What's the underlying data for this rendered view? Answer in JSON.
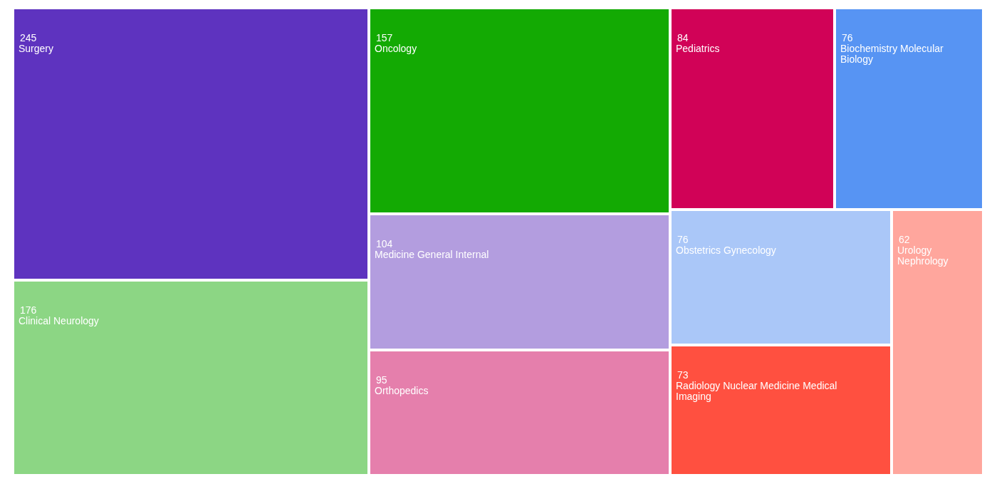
{
  "chart_data": {
    "type": "other",
    "categories": [
      "Surgery",
      "Clinical Neurology",
      "Oncology",
      "Medicine General Internal",
      "Orthopedics",
      "Pediatrics",
      "Biochemistry Molecular Biology",
      "Obstetrics Gynecology",
      "Radiology Nuclear Medicine Medical Imaging",
      "Urology Nephrology"
    ],
    "values": [
      245,
      176,
      157,
      104,
      95,
      84,
      76,
      76,
      73,
      62
    ],
    "colors": [
      "#5e33bf",
      "#8cd684",
      "#13aa03",
      "#b39ddf",
      "#e57fac",
      "#d10257",
      "#5794f3",
      "#aac7f8",
      "#ff5040",
      "#ffa69d"
    ],
    "data_labels": true
  }
}
